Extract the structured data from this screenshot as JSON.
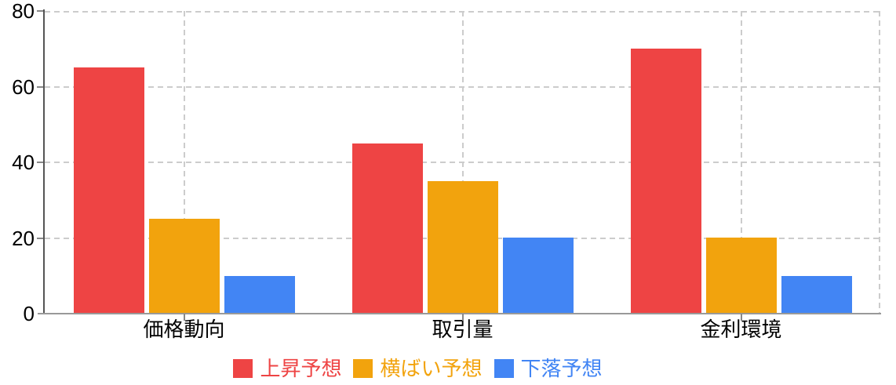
{
  "chart_data": {
    "type": "bar",
    "categories": [
      "価格動向",
      "取引量",
      "金利環境"
    ],
    "series": [
      {
        "name": "上昇予想",
        "color": "#ee4444",
        "values": [
          65,
          45,
          70
        ]
      },
      {
        "name": "横ばい予想",
        "color": "#f2a30d",
        "values": [
          25,
          35,
          20
        ]
      },
      {
        "name": "下落予想",
        "color": "#4285f4",
        "values": [
          10,
          20,
          10
        ]
      }
    ],
    "title": "",
    "xlabel": "",
    "ylabel": "",
    "ylim": [
      0,
      80
    ],
    "yticks": [
      0,
      20,
      40,
      60,
      80
    ],
    "grid": true,
    "gridline_style": "dashed",
    "legend_position": "bottom"
  },
  "colors": {
    "background": "#ffffff",
    "grid": "#cccccc",
    "axis_y": "#555555",
    "axis_x": "#999999",
    "tick_label": "#000000"
  }
}
